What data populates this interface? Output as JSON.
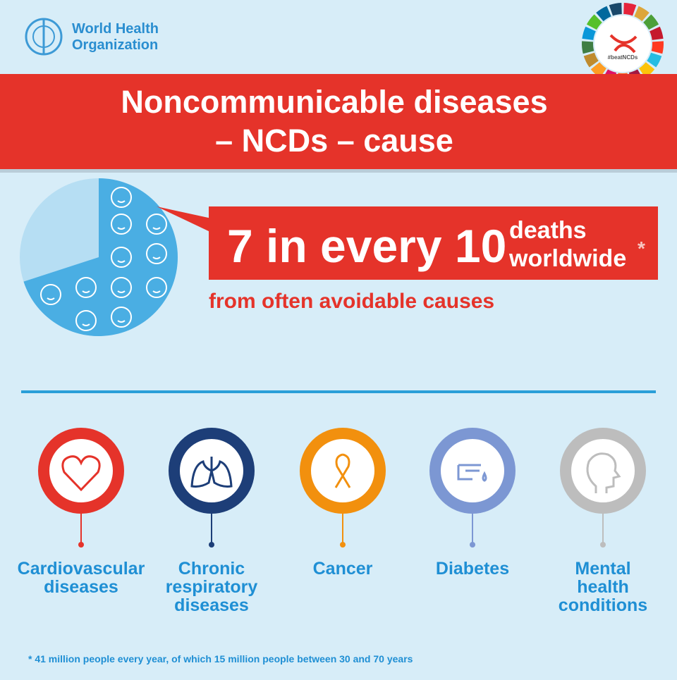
{
  "logo": {
    "lines": [
      "World Health",
      "Organization"
    ]
  },
  "badge": {
    "text": "#beatNCDs"
  },
  "banner": {
    "lines": [
      "Noncommunicable diseases",
      "– NCDs – cause"
    ]
  },
  "headline": {
    "main": "7 in every 10",
    "side": [
      "deaths",
      "worldwide"
    ],
    "mark": "*"
  },
  "pie": {
    "filled": 7,
    "total": 10
  },
  "subtitle": "from often avoidable causes",
  "causes": [
    {
      "lines": [
        "Cardiovascular",
        "diseases"
      ]
    },
    {
      "lines": [
        "Chronic",
        "respiratory",
        "diseases"
      ]
    },
    {
      "lines": [
        "Cancer"
      ]
    },
    {
      "lines": [
        "Diabetes"
      ]
    },
    {
      "lines": [
        "Mental",
        "health",
        "conditions"
      ]
    }
  ],
  "footnote": "* 41 million people every year, of which 15 million people between 30 and 70 years"
}
